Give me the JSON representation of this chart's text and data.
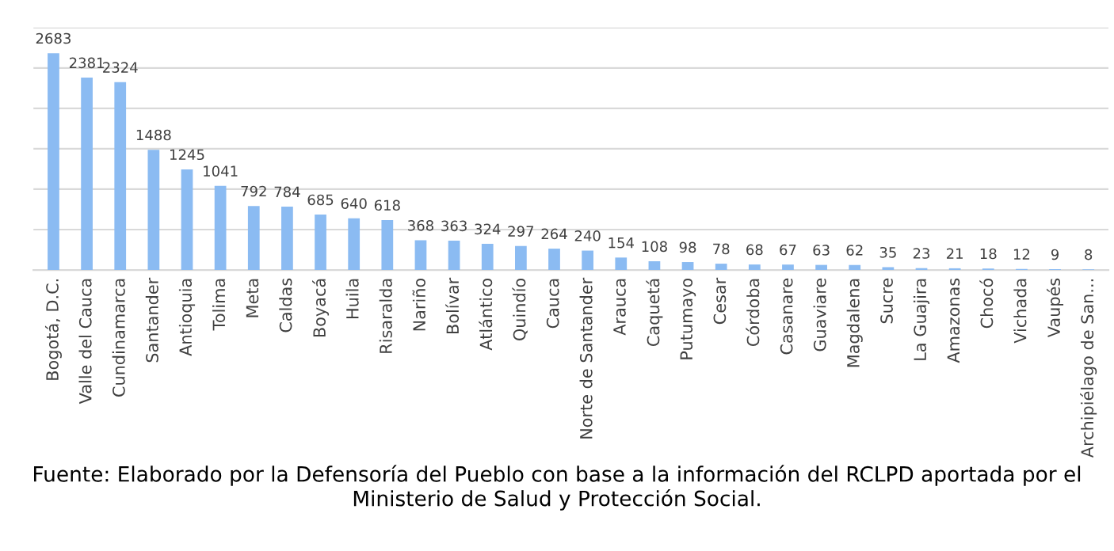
{
  "chart_data": {
    "type": "bar",
    "categories": [
      "Bogotá, D.C.",
      "Valle del Cauca",
      "Cundinamarca",
      "Santander",
      "Antioquia",
      "Tolima",
      "Meta",
      "Caldas",
      "Boyacá",
      "Huila",
      "Risaralda",
      "Nariño",
      "Bolívar",
      "Atlántico",
      "Quindío",
      "Cauca",
      "Norte de Santander",
      "Arauca",
      "Caquetá",
      "Putumayo",
      "Cesar",
      "Córdoba",
      "Casanare",
      "Guaviare",
      "Magdalena",
      "Sucre",
      "La Guajira",
      "Amazonas",
      "Chocó",
      "Vichada",
      "Vaupés",
      "Archipiélago de San..."
    ],
    "values": [
      2683,
      2381,
      2324,
      1488,
      1245,
      1041,
      792,
      784,
      685,
      640,
      618,
      368,
      363,
      324,
      297,
      264,
      240,
      154,
      108,
      98,
      78,
      68,
      67,
      63,
      62,
      35,
      23,
      21,
      18,
      12,
      9,
      8
    ],
    "color": "#8bbbf2",
    "data_labels": true,
    "ylim": [
      0,
      3000
    ],
    "yticks": [
      {
        "value": 0,
        "label": null
      },
      {
        "value": 500,
        "label": null
      },
      {
        "value": 1000,
        "label": null
      },
      {
        "value": 1500,
        "label": null
      },
      {
        "value": 2000,
        "label": null
      },
      {
        "value": 2500,
        "label": null
      },
      {
        "value": 3000,
        "label": null
      }
    ],
    "grid": "y",
    "tick_labels": "x",
    "legend": false,
    "annotations": [
      "Fuente: Elaborado por la Defensoría del Pueblo con base a la información del RCLPD aportada por el Ministerio de Salud y Protección Social."
    ]
  }
}
